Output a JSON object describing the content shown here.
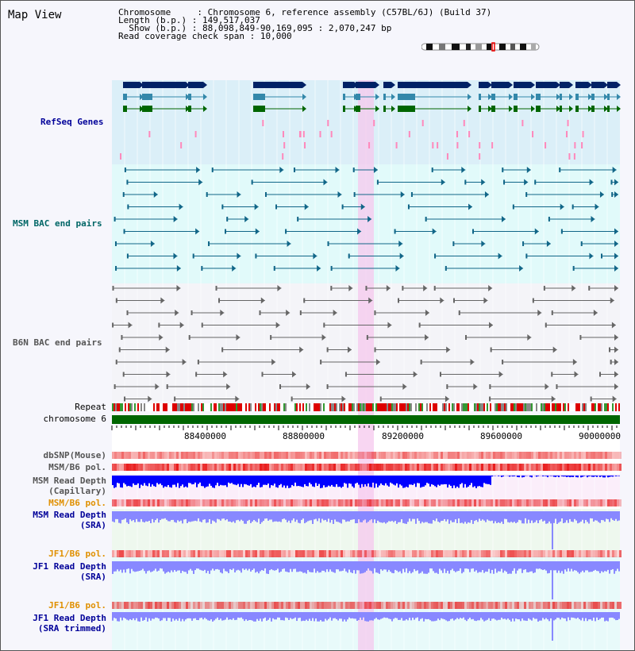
{
  "view_title": "Map View",
  "info": {
    "chromosome_label": "Chromosome",
    "chromosome_value": "Chromosome 6, reference assembly (C57BL/6J) (Build 37)",
    "length_label": "Length (b.p.)",
    "length_value": "149,517,037",
    "show_label": "Show (b.p.)",
    "show_value": "88,098,849-90,169,095 : 2,070,247 bp",
    "coverage_label": "Read coverage check span",
    "coverage_value": "10,000"
  },
  "track_labels": {
    "refseq": "RefSeq Genes",
    "msm_bac": "MSM BAC end pairs",
    "b6n_bac": "B6N BAC end pairs",
    "repeat": "Repeat",
    "chromosome": "chromosome 6",
    "dbsnp": "dbSNP(Mouse)",
    "msm_b6_pol_1": "MSM/B6 pol.",
    "msm_read_depth_cap_1": "MSM Read Depth",
    "msm_read_depth_cap_2": "(Capillary)",
    "msm_b6_pol_2": "MSM/B6 pol.",
    "msm_read_depth_sra_1": "MSM Read Depth",
    "msm_read_depth_sra_2": "(SRA)",
    "jf1_b6_pol_1": "JF1/B6 pol.",
    "jf1_read_depth_sra_1": "JF1 Read Depth",
    "jf1_read_depth_sra_2": "(SRA)",
    "jf1_b6_pol_2": "JF1/B6 pol.",
    "jf1_read_depth_trim_1": "JF1 Read Depth",
    "jf1_read_depth_trim_2": "(SRA trimmed)"
  },
  "axis_ticks": [
    "88400000",
    "88800000",
    "89200000",
    "89600000",
    "90000000"
  ],
  "colors": {
    "label_navy": "#000099",
    "label_teal": "#006666",
    "label_gray": "#555555",
    "label_orange": "#e09000",
    "refseq_bg": "#dbeff8",
    "msm_bg": "#e1fafa",
    "b6n_bg": "#f4f4f8",
    "highlight": "#f6c8ee",
    "chromosome_bar": "#006600",
    "depth_blue": "#0000ff",
    "depth_light": "#8888ff"
  }
}
